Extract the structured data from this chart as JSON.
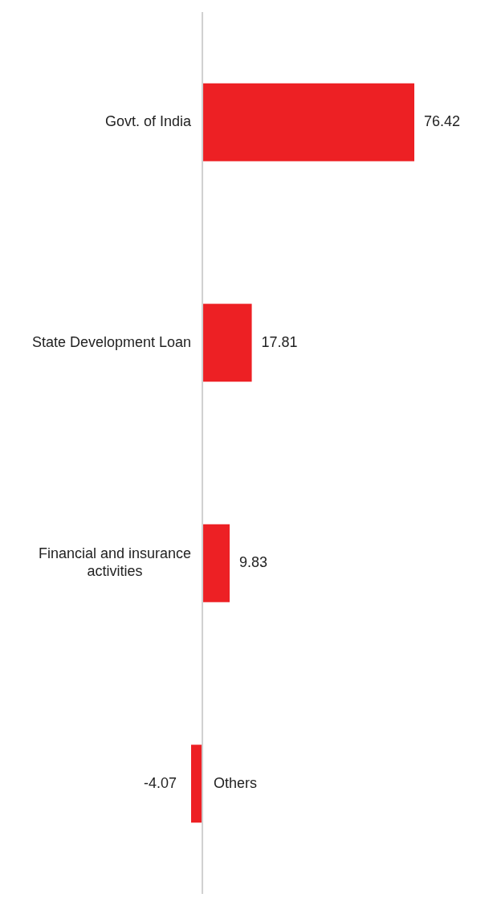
{
  "chart_data": {
    "type": "bar",
    "orientation": "horizontal",
    "categories": [
      "Govt. of India",
      "State Development Loan",
      "Financial and insurance activities",
      "Others"
    ],
    "values": [
      76.42,
      17.81,
      9.83,
      -4.07
    ],
    "color": "#ed2024",
    "data_labels": true
  }
}
